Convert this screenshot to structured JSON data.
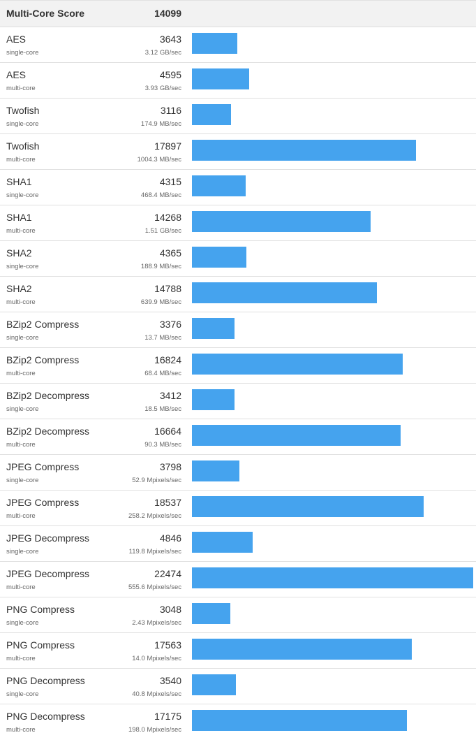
{
  "header": {
    "label": "Multi-Core Score",
    "score": "14099"
  },
  "max_score": 22474,
  "bar_color": "#45a3ee",
  "rows": [
    {
      "name": "AES",
      "mode": "single-core",
      "score": 3643,
      "rate": "3.12 GB/sec"
    },
    {
      "name": "AES",
      "mode": "multi-core",
      "score": 4595,
      "rate": "3.93 GB/sec"
    },
    {
      "name": "Twofish",
      "mode": "single-core",
      "score": 3116,
      "rate": "174.9 MB/sec"
    },
    {
      "name": "Twofish",
      "mode": "multi-core",
      "score": 17897,
      "rate": "1004.3 MB/sec"
    },
    {
      "name": "SHA1",
      "mode": "single-core",
      "score": 4315,
      "rate": "468.4 MB/sec"
    },
    {
      "name": "SHA1",
      "mode": "multi-core",
      "score": 14268,
      "rate": "1.51 GB/sec"
    },
    {
      "name": "SHA2",
      "mode": "single-core",
      "score": 4365,
      "rate": "188.9 MB/sec"
    },
    {
      "name": "SHA2",
      "mode": "multi-core",
      "score": 14788,
      "rate": "639.9 MB/sec"
    },
    {
      "name": "BZip2 Compress",
      "mode": "single-core",
      "score": 3376,
      "rate": "13.7 MB/sec"
    },
    {
      "name": "BZip2 Compress",
      "mode": "multi-core",
      "score": 16824,
      "rate": "68.4 MB/sec"
    },
    {
      "name": "BZip2 Decompress",
      "mode": "single-core",
      "score": 3412,
      "rate": "18.5 MB/sec"
    },
    {
      "name": "BZip2 Decompress",
      "mode": "multi-core",
      "score": 16664,
      "rate": "90.3 MB/sec"
    },
    {
      "name": "JPEG Compress",
      "mode": "single-core",
      "score": 3798,
      "rate": "52.9 Mpixels/sec"
    },
    {
      "name": "JPEG Compress",
      "mode": "multi-core",
      "score": 18537,
      "rate": "258.2 Mpixels/sec"
    },
    {
      "name": "JPEG Decompress",
      "mode": "single-core",
      "score": 4846,
      "rate": "119.8 Mpixels/sec"
    },
    {
      "name": "JPEG Decompress",
      "mode": "multi-core",
      "score": 22474,
      "rate": "555.6 Mpixels/sec"
    },
    {
      "name": "PNG Compress",
      "mode": "single-core",
      "score": 3048,
      "rate": "2.43 Mpixels/sec"
    },
    {
      "name": "PNG Compress",
      "mode": "multi-core",
      "score": 17563,
      "rate": "14.0 Mpixels/sec"
    },
    {
      "name": "PNG Decompress",
      "mode": "single-core",
      "score": 3540,
      "rate": "40.8 Mpixels/sec"
    },
    {
      "name": "PNG Decompress",
      "mode": "multi-core",
      "score": 17175,
      "rate": "198.0 Mpixels/sec"
    }
  ]
}
